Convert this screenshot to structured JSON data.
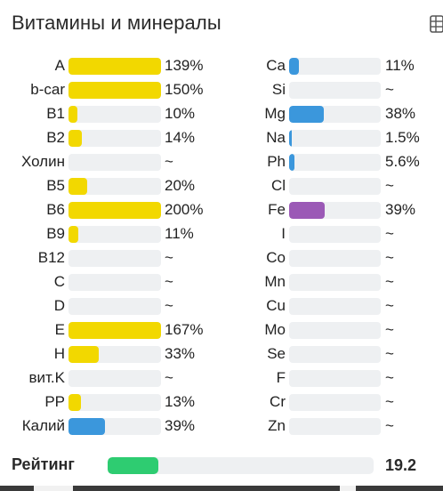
{
  "header": {
    "title": "Витамины и минералы",
    "table_icon": "table-icon"
  },
  "colors": {
    "vitamin": "#f2d800",
    "mineral": "#3b97dc",
    "iron": "#9b59b6",
    "rating": "#2ecc71"
  },
  "vitamins": [
    {
      "name": "A",
      "percent_text": "139%",
      "fill_percent": 100,
      "color": "#f2d800"
    },
    {
      "name": "b-car",
      "percent_text": "150%",
      "fill_percent": 100,
      "color": "#f2d800"
    },
    {
      "name": "B1",
      "percent_text": "10%",
      "fill_percent": 10,
      "color": "#f2d800"
    },
    {
      "name": "B2",
      "percent_text": "14%",
      "fill_percent": 14,
      "color": "#f2d800"
    },
    {
      "name": "Холин",
      "percent_text": "~",
      "fill_percent": 0,
      "color": "#f2d800"
    },
    {
      "name": "B5",
      "percent_text": "20%",
      "fill_percent": 20,
      "color": "#f2d800"
    },
    {
      "name": "B6",
      "percent_text": "200%",
      "fill_percent": 100,
      "color": "#f2d800"
    },
    {
      "name": "B9",
      "percent_text": "11%",
      "fill_percent": 11,
      "color": "#f2d800"
    },
    {
      "name": "B12",
      "percent_text": "~",
      "fill_percent": 0,
      "color": "#f2d800"
    },
    {
      "name": "C",
      "percent_text": "~",
      "fill_percent": 0,
      "color": "#f2d800"
    },
    {
      "name": "D",
      "percent_text": "~",
      "fill_percent": 0,
      "color": "#f2d800"
    },
    {
      "name": "E",
      "percent_text": "167%",
      "fill_percent": 100,
      "color": "#f2d800"
    },
    {
      "name": "H",
      "percent_text": "33%",
      "fill_percent": 33,
      "color": "#f2d800"
    },
    {
      "name": "вит.K",
      "percent_text": "~",
      "fill_percent": 0,
      "color": "#f2d800"
    },
    {
      "name": "PP",
      "percent_text": "13%",
      "fill_percent": 13,
      "color": "#f2d800"
    },
    {
      "name": "Калий",
      "percent_text": "39%",
      "fill_percent": 39,
      "color": "#3b97dc"
    }
  ],
  "minerals": [
    {
      "name": "Ca",
      "percent_text": "11%",
      "fill_percent": 11,
      "color": "#3b97dc"
    },
    {
      "name": "Si",
      "percent_text": "~",
      "fill_percent": 0,
      "color": "#3b97dc"
    },
    {
      "name": "Mg",
      "percent_text": "38%",
      "fill_percent": 38,
      "color": "#3b97dc"
    },
    {
      "name": "Na",
      "percent_text": "1.5%",
      "fill_percent": 1.5,
      "color": "#3b97dc"
    },
    {
      "name": "Ph",
      "percent_text": "5.6%",
      "fill_percent": 5.6,
      "color": "#3b97dc"
    },
    {
      "name": "Cl",
      "percent_text": "~",
      "fill_percent": 0,
      "color": "#3b97dc"
    },
    {
      "name": "Fe",
      "percent_text": "39%",
      "fill_percent": 39,
      "color": "#9b59b6"
    },
    {
      "name": "I",
      "percent_text": "~",
      "fill_percent": 0,
      "color": "#3b97dc"
    },
    {
      "name": "Co",
      "percent_text": "~",
      "fill_percent": 0,
      "color": "#3b97dc"
    },
    {
      "name": "Mn",
      "percent_text": "~",
      "fill_percent": 0,
      "color": "#3b97dc"
    },
    {
      "name": "Cu",
      "percent_text": "~",
      "fill_percent": 0,
      "color": "#3b97dc"
    },
    {
      "name": "Mo",
      "percent_text": "~",
      "fill_percent": 0,
      "color": "#3b97dc"
    },
    {
      "name": "Se",
      "percent_text": "~",
      "fill_percent": 0,
      "color": "#3b97dc"
    },
    {
      "name": "F",
      "percent_text": "~",
      "fill_percent": 0,
      "color": "#3b97dc"
    },
    {
      "name": "Cr",
      "percent_text": "~",
      "fill_percent": 0,
      "color": "#3b97dc"
    },
    {
      "name": "Zn",
      "percent_text": "~",
      "fill_percent": 0,
      "color": "#3b97dc"
    }
  ],
  "rating": {
    "label": "Рейтинг",
    "value": "19.2",
    "fill_percent": 19.2,
    "color": "#2ecc71"
  }
}
